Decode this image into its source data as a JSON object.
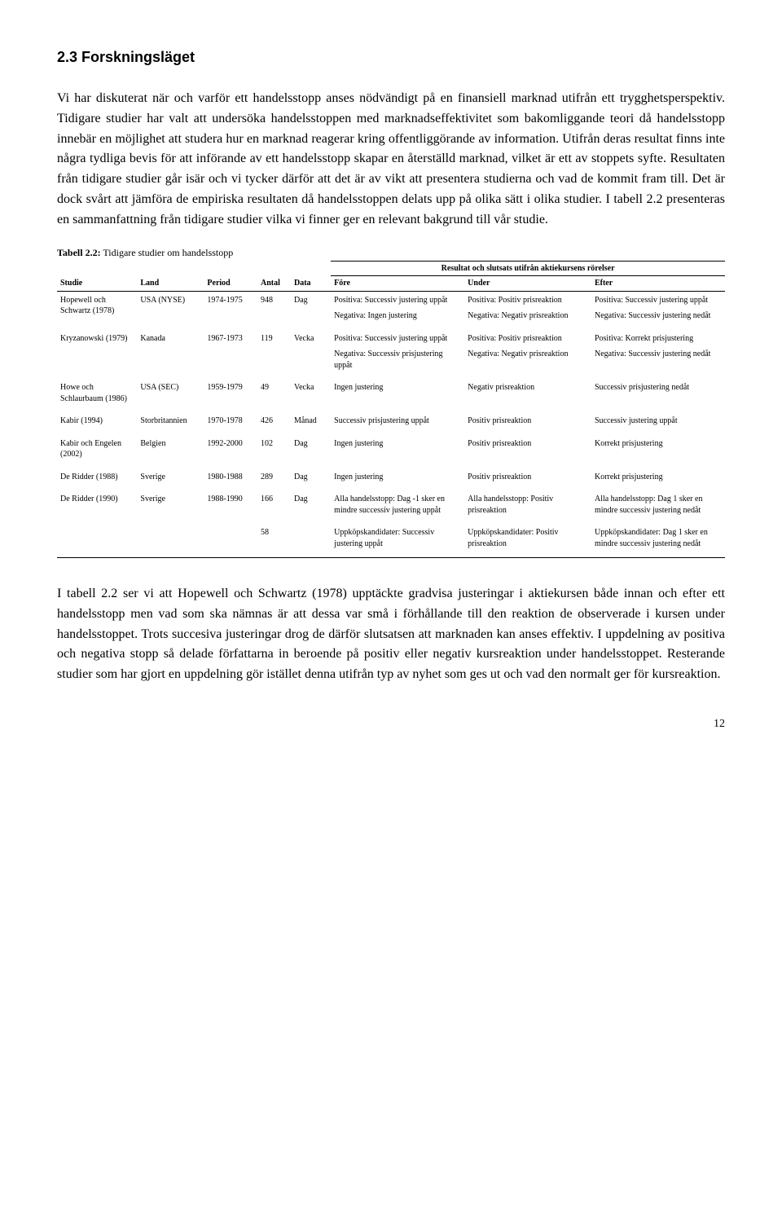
{
  "heading": "2.3 Forskningsläget",
  "para1": "Vi har diskuterat när och varför ett handelsstopp anses nödvändigt på en finansiell marknad utifrån ett trygghetsperspektiv. Tidigare studier har valt att undersöka handelsstoppen med marknadseffektivitet som bakomliggande teori då handelsstopp innebär en möjlighet att studera hur en marknad reagerar kring offentliggörande av information. Utifrån deras resultat finns inte några tydliga bevis för att införande av ett handelsstopp skapar en återställd marknad, vilket är ett av stoppets syfte. Resultaten från tidigare studier går isär och vi tycker därför att det är av vikt att presentera studierna och vad de kommit fram till. Det är dock svårt att jämföra de empiriska resultaten då handelsstoppen delats upp på olika sätt i olika studier. I tabell 2.2 presenteras en sammanfattning från tidigare studier vilka vi finner ger en relevant bakgrund till vår studie.",
  "table_caption_bold": "Tabell 2.2:",
  "table_caption_rest": " Tidigare studier om handelsstopp",
  "superheader": "Resultat och slutsats utifrån aktiekursens rörelser",
  "cols": {
    "studie": "Studie",
    "land": "Land",
    "period": "Period",
    "antal": "Antal",
    "data": "Data",
    "fore": "Före",
    "under": "Under",
    "efter": "Efter"
  },
  "rows": [
    {
      "studie": "Hopewell och Schwartz (1978)",
      "land": "USA (NYSE)",
      "period": "1974-1975",
      "antal": "948",
      "data": "Dag",
      "fore": "Positiva: Successiv justering uppåt\n\nNegativa: Ingen justering",
      "under": "Positiva: Positiv prisreaktion\n\nNegativa: Negativ prisreaktion",
      "efter": "Positiva: Successiv justering uppåt\n\nNegativa: Successiv justering nedåt"
    },
    {
      "studie": "Kryzanowski (1979)",
      "land": "Kanada",
      "period": "1967-1973",
      "antal": "119",
      "data": "Vecka",
      "fore": "Positiva: Successiv justering uppåt\n\nNegativa: Successiv prisjustering uppåt",
      "under": "Positiva: Positiv prisreaktion\n\nNegativa: Negativ prisreaktion",
      "efter": "Positiva: Korrekt prisjustering\n\nNegativa: Successiv justering nedåt"
    },
    {
      "studie": "Howe och Schlaurbaum (1986)",
      "land": "USA (SEC)",
      "period": "1959-1979",
      "antal": "49",
      "data": "Vecka",
      "fore": "Ingen justering",
      "under": "Negativ prisreaktion",
      "efter": "Successiv prisjustering nedåt"
    },
    {
      "studie": "Kabir (1994)",
      "land": "Storbritannien",
      "period": "1970-1978",
      "antal": "426",
      "data": "Månad",
      "fore": "Successiv prisjustering uppåt",
      "under": "Positiv prisreaktion",
      "efter": "Successiv justering uppåt"
    },
    {
      "studie": "Kabir och Engelen (2002)",
      "land": "Belgien",
      "period": "1992-2000",
      "antal": "102",
      "data": "Dag",
      "fore": "Ingen justering",
      "under": "Positiv prisreaktion",
      "efter": "Korrekt prisjustering"
    },
    {
      "studie": "De Ridder (1988)",
      "land": "Sverige",
      "period": "1980-1988",
      "antal": "289",
      "data": "Dag",
      "fore": "Ingen justering",
      "under": "Positiv prisreaktion",
      "efter": "Korrekt prisjustering"
    },
    {
      "studie": "De Ridder (1990)",
      "land": "Sverige",
      "period": "1988-1990",
      "antal": "166",
      "data": "Dag",
      "fore": "Alla handelsstopp: Dag -1 sker en mindre successiv justering uppåt",
      "under": "Alla handelsstopp: Positiv prisreaktion",
      "efter": "Alla handelsstopp: Dag 1 sker en mindre successiv justering nedåt"
    },
    {
      "studie": "",
      "land": "",
      "period": "",
      "antal": "58",
      "data": "",
      "fore": "Uppköpskandidater: Successiv justering uppåt",
      "under": "Uppköpskandidater: Positiv prisreaktion",
      "efter": "Uppköpskandidater: Dag 1 sker en mindre successiv justering nedåt"
    }
  ],
  "para2": "I tabell 2.2 ser vi att Hopewell och Schwartz (1978) upptäckte gradvisa justeringar i aktiekursen både innan och efter ett handelsstopp men vad som ska nämnas är att dessa var små i förhållande till den reaktion de observerade i kursen under handelsstoppet. Trots succesiva justeringar drog de därför slutsatsen att marknaden kan anses effektiv. I uppdelning av positiva och negativa stopp så delade författarna in beroende på positiv eller negativ kursreaktion under handelsstoppet. Resterande studier som har gjort en uppdelning gör istället denna utifrån typ av nyhet som ges ut och vad den normalt ger för kursreaktion.",
  "page_number": "12"
}
